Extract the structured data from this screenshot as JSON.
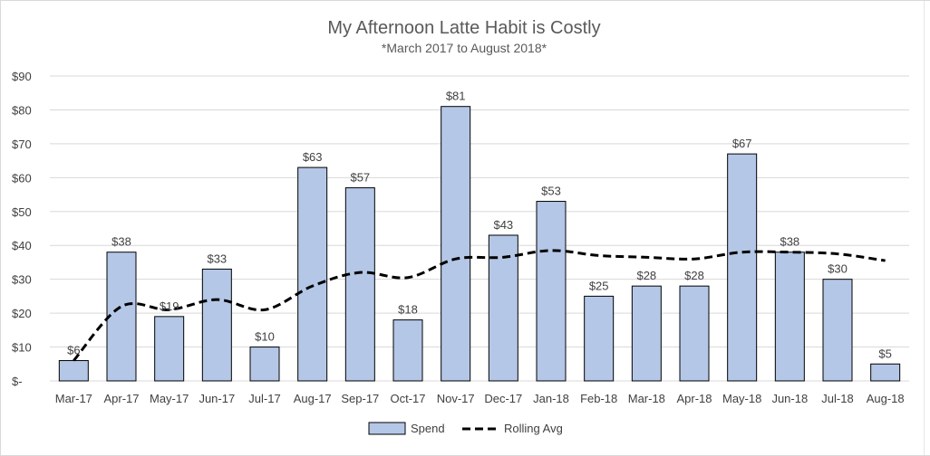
{
  "chart_data": {
    "type": "bar",
    "title": "My Afternoon Latte Habit is Costly",
    "subtitle": "*March 2017 to August 2018*",
    "categories": [
      "Mar-17",
      "Apr-17",
      "May-17",
      "Jun-17",
      "Jul-17",
      "Aug-17",
      "Sep-17",
      "Oct-17",
      "Nov-17",
      "Dec-17",
      "Jan-18",
      "Feb-18",
      "Mar-18",
      "Apr-18",
      "May-18",
      "Jun-18",
      "Jul-18",
      "Aug-18"
    ],
    "series": [
      {
        "name": "Spend",
        "type": "bar",
        "color": "#b4c7e7",
        "values": [
          6,
          38,
          19,
          33,
          10,
          63,
          57,
          18,
          81,
          43,
          53,
          25,
          28,
          28,
          67,
          38,
          30,
          5
        ],
        "labels": [
          "$6",
          "$38",
          "$19",
          "$33",
          "$10",
          "$63",
          "$57",
          "$18",
          "$81",
          "$43",
          "$53",
          "$25",
          "$28",
          "$28",
          "$67",
          "$38",
          "$30",
          "$5"
        ]
      },
      {
        "name": "Rolling Avg",
        "type": "line",
        "style": "dashed",
        "color": "#000000",
        "values": [
          6,
          22,
          21,
          24,
          21,
          28,
          32,
          30.5,
          36,
          36.5,
          38.5,
          37,
          36.5,
          36,
          38,
          38,
          37.5,
          35.5
        ]
      }
    ],
    "ylim": [
      0,
      90
    ],
    "yticks": [
      0,
      10,
      20,
      30,
      40,
      50,
      60,
      70,
      80,
      90
    ],
    "ytick_labels": [
      "$-",
      "$10",
      "$20",
      "$30",
      "$40",
      "$50",
      "$60",
      "$70",
      "$80",
      "$90"
    ],
    "xlabel": "",
    "ylabel": "",
    "grid": true,
    "legend_position": "bottom"
  }
}
